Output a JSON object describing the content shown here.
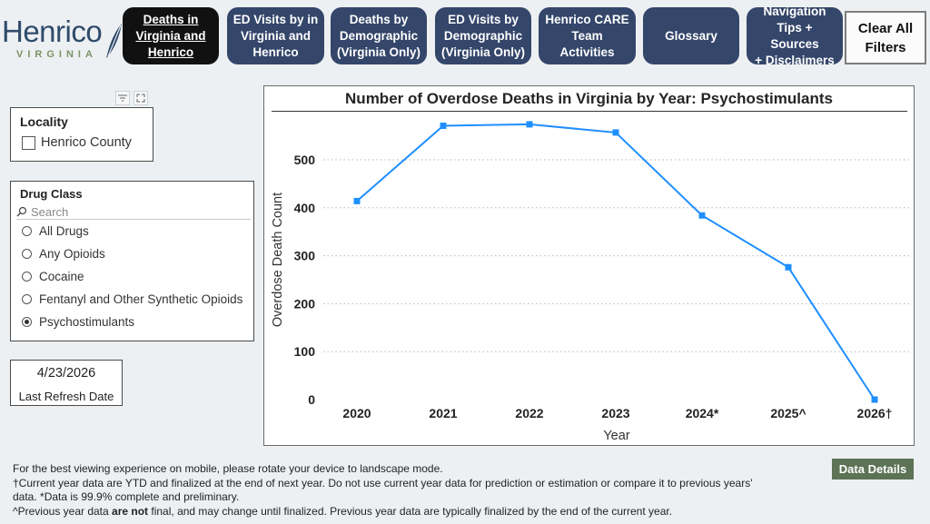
{
  "logo": {
    "word": "Henrico",
    "sub": "VIRGINIA"
  },
  "nav": {
    "deaths_va_henrico": "Deaths in\nVirginia and\nHenrico",
    "ed_visits": "ED Visits by in\nVirginia and\nHenrico",
    "deaths_demographic": "Deaths by\nDemographic\n(Virginia Only)",
    "ed_demographic": "ED Visits by\nDemographic\n(Virginia Only)",
    "care_team": "Henrico CARE\nTeam Activities",
    "glossary": "Glossary",
    "navigation_tips": "Navigation\nTips + Sources\n+ Disclaimers",
    "clear_filters": "Clear All\nFilters"
  },
  "locality": {
    "title": "Locality",
    "options": [
      "Henrico County"
    ]
  },
  "drug_class": {
    "title": "Drug Class",
    "search_placeholder": "Search",
    "options": [
      "All Drugs",
      "Any Opioids",
      "Cocaine",
      "Fentanyl and Other Synthetic Opioids",
      "Psychostimulants"
    ],
    "selected": "Psychostimulants"
  },
  "refresh": {
    "date": "4/23/2026",
    "label": "Last Refresh Date"
  },
  "chart_data": {
    "type": "line",
    "title": "Number of Overdose Deaths in Virginia by Year: Psychostimulants",
    "xlabel": "Year",
    "ylabel": "Overdose Death Count",
    "categories": [
      "2020",
      "2021",
      "2022",
      "2023",
      "2024*",
      "2025^",
      "2026†"
    ],
    "series": [
      {
        "values": [
          414,
          571,
          574,
          557,
          384,
          276,
          0
        ]
      }
    ],
    "ylim": [
      0,
      560
    ],
    "yticks": [
      0,
      100,
      200,
      300,
      400,
      500
    ],
    "grid": true,
    "color": "#1f8fff"
  },
  "footer": {
    "line1": "For the best viewing experience on mobile, please rotate your device to landscape mode.",
    "line2": "†Current year data are YTD and finalized at the end of next year. Do not use current year data for prediction or estimation or compare it to previous years'",
    "line3": "data. *Data is 99.9% complete and preliminary.",
    "line4a": "^Previous year data ",
    "line4b": "are not",
    "line4c": " final, and may change until finalized. Previous year data are typically finalized by the end of the current year."
  },
  "data_details": "Data Details"
}
